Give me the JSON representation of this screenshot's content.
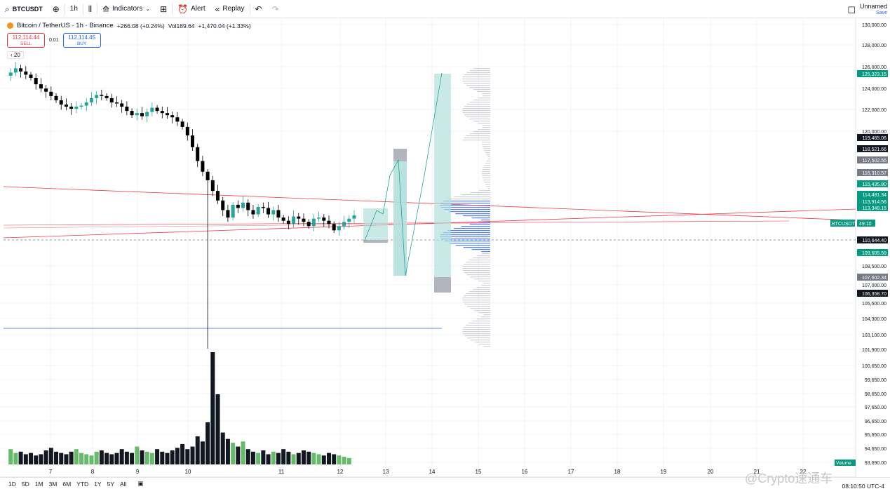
{
  "toolbar": {
    "symbol": "BTCUSDT",
    "interval": "1h",
    "indicators_label": "Indicators",
    "alert_label": "Alert",
    "replay_label": "Replay",
    "layout_name": "Unnamed",
    "layout_save": "Save",
    "icons": [
      "search-icon",
      "add-icon",
      "candle-style-icon",
      "indicators-icon",
      "templates-icon",
      "alert-icon",
      "replay-icon",
      "undo-icon",
      "redo-icon",
      "layout-icon"
    ]
  },
  "legend": {
    "title": "Bitcoin / TetherUS · 1h · Binance",
    "change": "+266.08 (+0.24%)",
    "vol": "Vol189.64",
    "vol_change": "+1,470.04 (+1.33%)"
  },
  "trade": {
    "sell_price": "112,114.44",
    "sell_label": "SELL",
    "qty": "0.01",
    "buy_price": "112,114.45",
    "buy_label": "BUY"
  },
  "indicator_badge": "20",
  "bottom": {
    "ranges": [
      "1D",
      "5D",
      "1M",
      "3M",
      "6M",
      "YTD",
      "1Y",
      "5Y",
      "All"
    ],
    "clock": "08:10:50 UTC-4",
    "watermark": "@Crypto速通车"
  },
  "chart_data": {
    "type": "candlestick",
    "price_axis": {
      "ticks": [
        "130,000.00",
        "128,000.00",
        "126,000.00",
        "124,000.00",
        "122,000.00",
        "120,000.00",
        "108,500.00",
        "107,000.00",
        "105,500.00",
        "104,300.00",
        "103,100.00",
        "101,900.00",
        "100,650.00",
        "99,650.00",
        "98,650.00",
        "97,650.00",
        "96,650.00",
        "95,650.00",
        "94,650.00",
        "93,690.00"
      ],
      "labels": [
        {
          "text": "125,323.15",
          "color": "#089981"
        },
        {
          "text": "119,465.06",
          "color": "#131722"
        },
        {
          "text": "118,521.66",
          "color": "#131722"
        },
        {
          "text": "117,502.55",
          "color": "#787b86"
        },
        {
          "text": "116,310.57",
          "color": "#787b86"
        },
        {
          "text": "115,435.80",
          "color": "#089981"
        },
        {
          "text": "114,481.34",
          "color": "#089981"
        },
        {
          "text": "113,914.56",
          "color": "#089981"
        },
        {
          "text": "113,348.15",
          "color": "#089981"
        },
        {
          "text": "110,644.40",
          "color": "#131722"
        },
        {
          "text": "109,605.59",
          "color": "#089981"
        },
        {
          "text": "107,602.34",
          "color": "#787b86"
        },
        {
          "text": "106,358.70",
          "color": "#131722"
        }
      ],
      "current_symbol": "BTCUSDT",
      "current_countdown": "49:10",
      "volume_label": "Volume"
    },
    "x_ticks": [
      "7",
      "8",
      "9",
      "10",
      "11",
      "12",
      "13",
      "14",
      "15",
      "16",
      "17",
      "18",
      "19",
      "20",
      "21",
      "22"
    ],
    "colors": {
      "up": "#26a69a",
      "down": "#000000",
      "vol_up": "#66bb6a",
      "vol_down": "#131722",
      "proj": "#b2dfdb",
      "trend": "#f23645",
      "support": "#2962ff"
    },
    "price_path": [
      125200,
      125500,
      125900,
      125600,
      125300,
      125000,
      124400,
      124000,
      123700,
      123300,
      122900,
      122500,
      122300,
      122100,
      122300,
      122400,
      122700,
      123100,
      123400,
      123300,
      123100,
      122700,
      122600,
      122300,
      121900,
      121500,
      121700,
      121400,
      121800,
      122200,
      121900,
      121700,
      121500,
      121300,
      120900,
      120400,
      119600,
      118500,
      117200,
      116200,
      115400,
      114400,
      113500,
      112600,
      111900,
      113100,
      112800,
      113300,
      112600,
      112200,
      112900,
      112800,
      112200,
      112600,
      111900,
      111600,
      111300,
      112000,
      111800,
      111500,
      111100,
      111800,
      111900,
      111600,
      111300,
      110700,
      111100,
      111500,
      111800,
      112100
    ],
    "volumes": [
      12,
      9,
      10,
      8,
      9,
      7,
      8,
      11,
      13,
      10,
      9,
      8,
      10,
      12,
      9,
      8,
      7,
      10,
      11,
      9,
      8,
      9,
      12,
      10,
      9,
      14,
      11,
      10,
      9,
      12,
      10,
      9,
      11,
      13,
      16,
      12,
      14,
      22,
      18,
      33,
      88,
      55,
      25,
      20,
      17,
      14,
      18,
      12,
      10,
      9,
      11,
      8,
      10,
      9,
      12,
      10,
      8,
      9,
      11,
      10,
      9,
      8,
      7,
      9,
      8,
      7,
      6,
      5
    ]
  }
}
